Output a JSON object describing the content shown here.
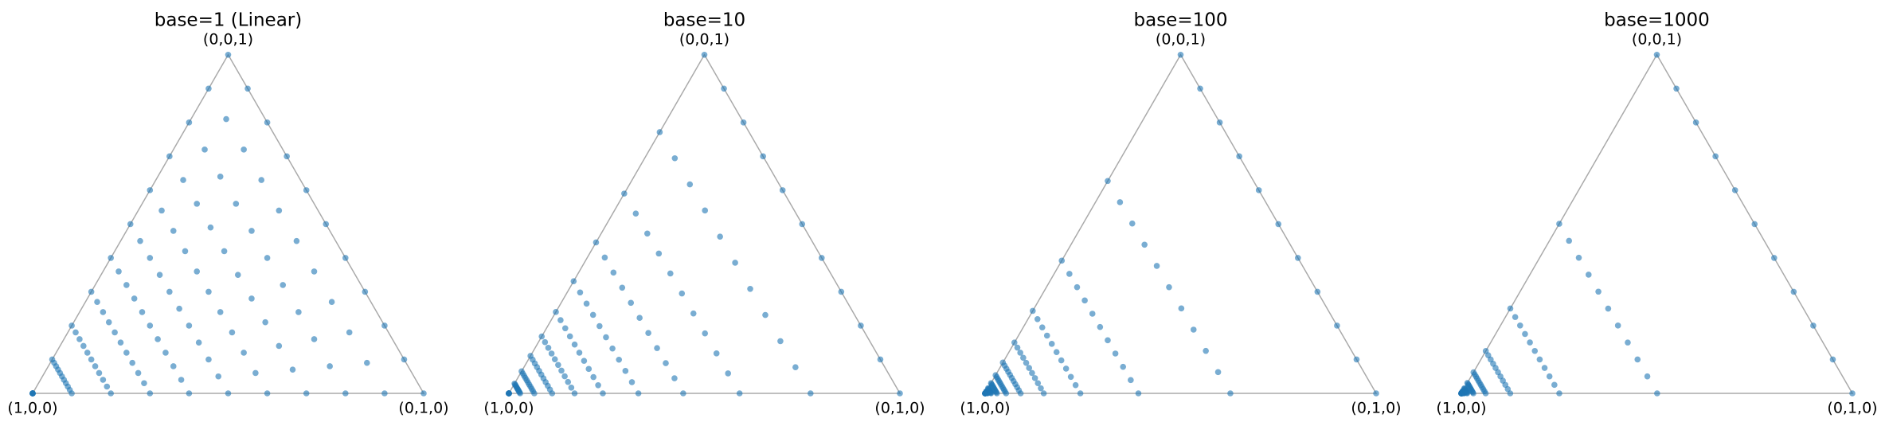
{
  "chart_data": [
    {
      "type": "ternary",
      "title": "base=1 (Linear)",
      "vertex_labels": [
        "(1,0,0)",
        "(0,1,0)",
        "(0,0,1)"
      ],
      "color": "#1f77b4",
      "levels": [
        0,
        0.1,
        0.2,
        0.3,
        0.4,
        0.5,
        0.6,
        0.7,
        0.8,
        0.9,
        1
      ],
      "fractions": [
        0,
        0.1,
        0.2,
        0.3,
        0.4,
        0.5,
        0.6,
        0.7,
        0.8,
        0.9,
        1
      ]
    },
    {
      "type": "ternary",
      "title": "base=10",
      "vertex_labels": [
        "(1,0,0)",
        "(0,1,0)",
        "(0,0,1)"
      ],
      "color": "#1f77b4",
      "levels": [
        0,
        0.0288,
        0.065,
        0.1106,
        0.168,
        0.2403,
        0.3312,
        0.4458,
        0.59,
        0.7715,
        1
      ],
      "fractions": [
        0,
        0.1,
        0.2,
        0.3,
        0.4,
        0.5,
        0.6,
        0.7,
        0.8,
        0.9,
        1
      ]
    },
    {
      "type": "ternary",
      "title": "base=100",
      "vertex_labels": [
        "(1,0,0)",
        "(0,1,0)",
        "(0,0,1)"
      ],
      "color": "#1f77b4",
      "levels": [
        0,
        0.0059,
        0.0153,
        0.0301,
        0.0536,
        0.0909,
        0.15,
        0.2436,
        0.392,
        0.6272,
        1
      ],
      "fractions": [
        0,
        0.1,
        0.2,
        0.3,
        0.4,
        0.5,
        0.6,
        0.7,
        0.8,
        0.9,
        1
      ]
    },
    {
      "type": "ternary",
      "title": "base=1000",
      "vertex_labels": [
        "(1,0,0)",
        "(0,1,0)",
        "(0,0,1)"
      ],
      "color": "#1f77b4",
      "levels": [
        0,
        0.001,
        0.003,
        0.007,
        0.0149,
        0.0307,
        0.0622,
        0.125,
        0.2505,
        0.5007,
        1
      ],
      "fractions": [
        0,
        0.1,
        0.2,
        0.3,
        0.4,
        0.5,
        0.6,
        0.7,
        0.8,
        0.9,
        1
      ]
    }
  ]
}
